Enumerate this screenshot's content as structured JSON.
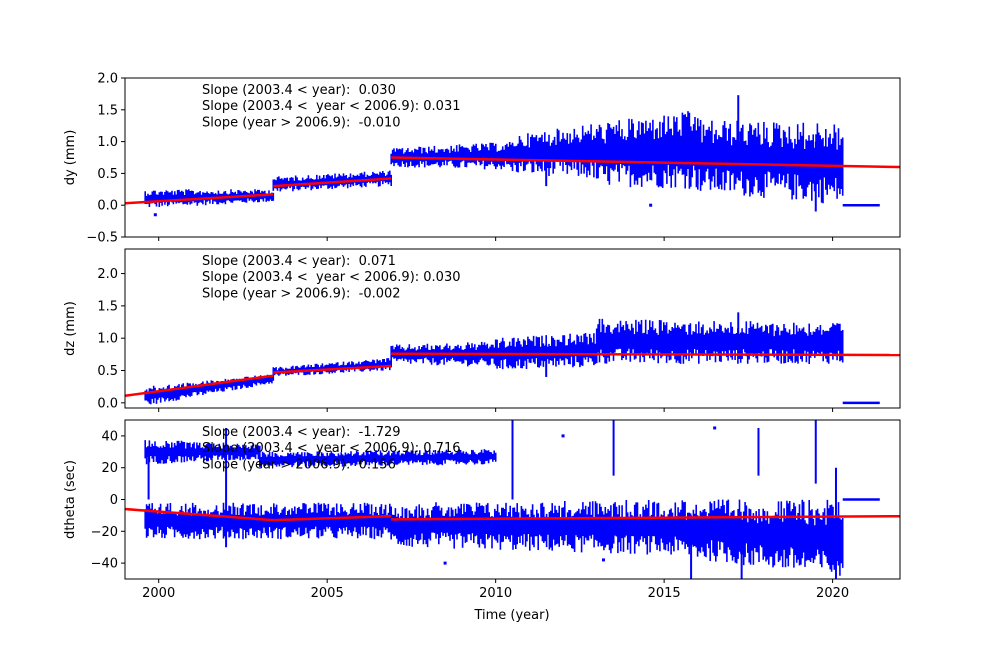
{
  "figure": {
    "xlabel": "Time (year)"
  },
  "chart_data": [
    {
      "type": "scatter",
      "ylabel": "dy (mm)",
      "xlim": [
        1999.0,
        2022.0
      ],
      "ylim": [
        -0.5,
        2.0
      ],
      "x_ticks": [
        2000,
        2005,
        2010,
        2015,
        2020
      ],
      "x_tick_labels": [
        "",
        "",
        "",
        "",
        ""
      ],
      "y_ticks": [
        -0.5,
        0.0,
        0.5,
        1.0,
        1.5,
        2.0
      ],
      "y_tick_labels": [
        "−0.5",
        "0.0",
        "0.5",
        "1.0",
        "1.5",
        "2.0"
      ],
      "annotations": [
        "Slope (2003.4 < year):  0.030",
        "Slope (2003.4 <  year < 2006.9): 0.031",
        "Slope (year > 2006.9):  -0.010"
      ],
      "data_color": "#0000ff",
      "fit_color": "#ff0000",
      "data_bands": [
        {
          "x": [
            1999.6,
            2003.4
          ],
          "y_start": [
            -0.05,
            0.25
          ],
          "y_end": [
            0.05,
            0.25
          ]
        },
        {
          "x": [
            2003.4,
            2006.9
          ],
          "y_start": [
            0.2,
            0.45
          ],
          "y_end": [
            0.3,
            0.55
          ]
        },
        {
          "x": [
            2006.9,
            2010.5
          ],
          "y_start": [
            0.6,
            0.9
          ],
          "y_end": [
            0.55,
            1.0
          ]
        },
        {
          "x": [
            2010.5,
            2013.0
          ],
          "y_start": [
            0.5,
            1.1
          ],
          "y_end": [
            0.4,
            1.3
          ]
        },
        {
          "x": [
            2013.0,
            2016.0
          ],
          "y_start": [
            0.3,
            1.3
          ],
          "y_end": [
            0.25,
            1.5
          ]
        },
        {
          "x": [
            2016.0,
            2020.3
          ],
          "y_start": [
            0.2,
            1.35
          ],
          "y_end": [
            0.0,
            1.3
          ]
        }
      ],
      "spikes": [
        {
          "x": 2017.2,
          "y": [
            0.8,
            1.73
          ]
        },
        {
          "x": 2019.5,
          "y": [
            -0.1,
            1.0
          ]
        },
        {
          "x": 2011.5,
          "y": [
            0.3,
            1.0
          ]
        }
      ],
      "outliers": [
        {
          "x": 2001.0,
          "y": 0.2
        },
        {
          "x": 2014.6,
          "y": 0.0
        },
        {
          "x": 1999.9,
          "y": -0.15
        }
      ],
      "flat_segment": {
        "x": [
          2020.3,
          2021.4
        ],
        "y": 0.0
      },
      "fit_segments": [
        {
          "x": [
            1999.0,
            2003.4
          ],
          "y": [
            0.03,
            0.17
          ]
        },
        {
          "x": [
            2003.4,
            2006.9
          ],
          "y": [
            0.3,
            0.42
          ]
        },
        {
          "x": [
            2006.9,
            2022.0
          ],
          "y": [
            0.75,
            0.6
          ]
        }
      ]
    },
    {
      "type": "scatter",
      "ylabel": "dz (mm)",
      "xlim": [
        1999.0,
        2022.0
      ],
      "ylim": [
        -0.08,
        2.38
      ],
      "x_ticks": [
        2000,
        2005,
        2010,
        2015,
        2020
      ],
      "x_tick_labels": [
        "",
        "",
        "",
        "",
        ""
      ],
      "y_ticks": [
        0.0,
        0.5,
        1.0,
        1.5,
        2.0
      ],
      "y_tick_labels": [
        "0.0",
        "0.5",
        "1.0",
        "1.5",
        "2.0"
      ],
      "annotations": [
        "Slope (2003.4 < year):  0.071",
        "Slope (2003.4 <  year < 2006.9): 0.030",
        "Slope (year > 2006.9):  -0.002"
      ],
      "data_color": "#0000ff",
      "fit_color": "#ff0000",
      "data_bands": [
        {
          "x": [
            1999.6,
            2003.4
          ],
          "y_start": [
            -0.05,
            0.25
          ],
          "y_end": [
            0.3,
            0.45
          ]
        },
        {
          "x": [
            2003.4,
            2006.9
          ],
          "y_start": [
            0.4,
            0.55
          ],
          "y_end": [
            0.5,
            0.7
          ]
        },
        {
          "x": [
            2006.9,
            2010.0
          ],
          "y_start": [
            0.6,
            0.9
          ],
          "y_end": [
            0.55,
            0.95
          ]
        },
        {
          "x": [
            2010.0,
            2013.0
          ],
          "y_start": [
            0.5,
            1.0
          ],
          "y_end": [
            0.55,
            1.1
          ]
        },
        {
          "x": [
            2013.0,
            2020.3
          ],
          "y_start": [
            0.6,
            1.3
          ],
          "y_end": [
            0.6,
            1.25
          ]
        }
      ],
      "spikes": [
        {
          "x": 2017.2,
          "y": [
            0.8,
            1.4
          ]
        },
        {
          "x": 2011.5,
          "y": [
            0.4,
            0.9
          ]
        }
      ],
      "outliers": [],
      "flat_segment": {
        "x": [
          2020.3,
          2021.4
        ],
        "y": 0.0
      },
      "fit_segments": [
        {
          "x": [
            1999.0,
            2003.4
          ],
          "y": [
            0.11,
            0.42
          ]
        },
        {
          "x": [
            2003.4,
            2006.9
          ],
          "y": [
            0.47,
            0.57
          ]
        },
        {
          "x": [
            2006.9,
            2022.0
          ],
          "y": [
            0.76,
            0.74
          ]
        }
      ]
    },
    {
      "type": "scatter",
      "ylabel": "dtheta (sec)",
      "xlim": [
        1999.0,
        2022.0
      ],
      "ylim": [
        -50,
        50
      ],
      "x_ticks": [
        2000,
        2005,
        2010,
        2015,
        2020
      ],
      "x_tick_labels": [
        "2000",
        "2005",
        "2010",
        "2015",
        "2020"
      ],
      "y_ticks": [
        -40,
        -20,
        0,
        20,
        40
      ],
      "y_tick_labels": [
        "−40",
        "−20",
        "0",
        "20",
        "40"
      ],
      "annotations": [
        "Slope (2003.4 < year):  -1.729",
        "Slope (2003.4 <  year < 2006.9): 0.716",
        "Slope (year > 2006.9):  0.156"
      ],
      "data_color": "#0000ff",
      "fit_color": "#ff0000",
      "data_bands": [
        {
          "x": [
            1999.6,
            2006.9
          ],
          "y_start": [
            -25,
            -2
          ],
          "y_end": [
            -25,
            -2
          ]
        },
        {
          "x": [
            2006.9,
            2015.0
          ],
          "y_start": [
            -30,
            -2
          ],
          "y_end": [
            -35,
            0
          ]
        },
        {
          "x": [
            2015.0,
            2020.3
          ],
          "y_start": [
            -35,
            0
          ],
          "y_end": [
            -50,
            0
          ]
        },
        {
          "x": [
            1999.6,
            2003.0
          ],
          "y_start": [
            22,
            38
          ],
          "y_end": [
            25,
            35
          ]
        },
        {
          "x": [
            2003.0,
            2010.0
          ],
          "y_start": [
            20,
            30
          ],
          "y_end": [
            22,
            32
          ]
        }
      ],
      "spikes": [
        {
          "x": 1999.7,
          "y": [
            0,
            28
          ]
        },
        {
          "x": 2010.5,
          "y": [
            0,
            50
          ]
        },
        {
          "x": 2013.5,
          "y": [
            15,
            50
          ]
        },
        {
          "x": 2017.8,
          "y": [
            15,
            45
          ]
        },
        {
          "x": 2019.5,
          "y": [
            10,
            50
          ]
        },
        {
          "x": 2002.0,
          "y": [
            -30,
            45
          ]
        },
        {
          "x": 2015.8,
          "y": [
            -50,
            -10
          ]
        },
        {
          "x": 2017.3,
          "y": [
            -50,
            -20
          ]
        },
        {
          "x": 2020.1,
          "y": [
            -50,
            20
          ]
        }
      ],
      "outliers": [
        {
          "x": 2012.0,
          "y": 40
        },
        {
          "x": 2016.5,
          "y": 45
        },
        {
          "x": 2008.5,
          "y": -40
        },
        {
          "x": 2013.2,
          "y": -38
        }
      ],
      "flat_segment": {
        "x": [
          2020.3,
          2021.4
        ],
        "y": 0.0
      },
      "fit_segments": [
        {
          "x": [
            1999.0,
            2003.4
          ],
          "y": [
            -6,
            -13
          ]
        },
        {
          "x": [
            2003.4,
            2006.9
          ],
          "y": [
            -13,
            -10.5
          ]
        },
        {
          "x": [
            2006.9,
            2022.0
          ],
          "y": [
            -12.5,
            -10.5
          ]
        }
      ]
    }
  ]
}
